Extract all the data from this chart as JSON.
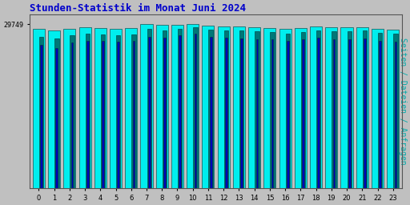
{
  "title": "Stunden-Statistik im Monat Juni 2024",
  "title_color": "#0000cc",
  "title_fontsize": 9,
  "ylabel": "Seiten / Dateien / Anfragen",
  "ylabel_color": "#00aaaa",
  "ylabel_fontsize": 7,
  "ytick_label": "29749",
  "ytick_value": 29749,
  "background_color": "#c0c0c0",
  "plot_bg_color": "#c0c0c0",
  "hours": [
    0,
    1,
    2,
    3,
    4,
    5,
    6,
    7,
    8,
    9,
    10,
    11,
    12,
    13,
    14,
    15,
    16,
    17,
    18,
    19,
    20,
    21,
    22,
    23
  ],
  "pages": [
    28900,
    28600,
    29000,
    29200,
    29100,
    29000,
    29050,
    29749,
    29600,
    29700,
    29749,
    29500,
    29400,
    29300,
    29200,
    29100,
    28950,
    29100,
    29350,
    29200,
    29200,
    29250,
    28900,
    28800
  ],
  "files": [
    27500,
    27200,
    27800,
    28000,
    27900,
    27800,
    27900,
    28900,
    28700,
    28900,
    29200,
    28800,
    28700,
    28600,
    28500,
    28400,
    28100,
    28400,
    28700,
    28500,
    28500,
    28600,
    28200,
    28100
  ],
  "requests": [
    26000,
    25500,
    26500,
    26800,
    26700,
    26600,
    26700,
    27500,
    27300,
    27800,
    28000,
    27500,
    27400,
    27200,
    27100,
    27000,
    26700,
    27000,
    27300,
    27100,
    27100,
    27200,
    26800,
    26600
  ],
  "bar_color_pages": "#00eeee",
  "bar_color_files": "#007777",
  "bar_color_requests": "#0000bb",
  "bar_edgecolor": "#003333",
  "ylim_min": 0,
  "ylim_max": 31500,
  "bar_width": 0.28
}
